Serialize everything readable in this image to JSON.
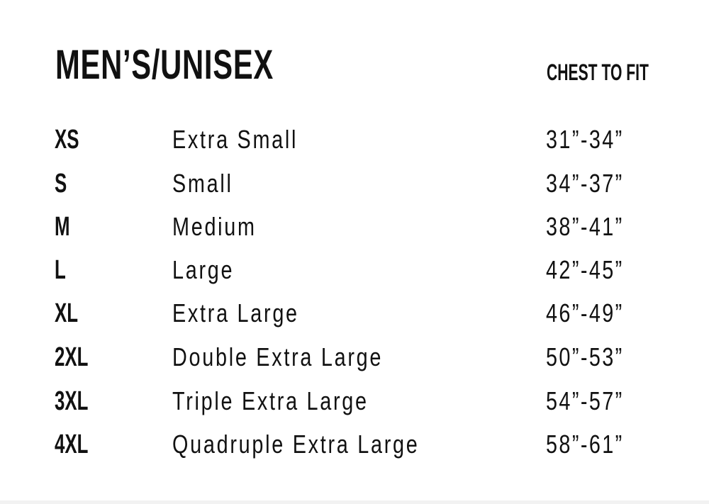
{
  "header": {
    "title": "MEN’S/UNISEX",
    "column_label": "CHEST TO FIT"
  },
  "rows": [
    {
      "code": "XS",
      "name": "Extra Small",
      "chest": "31”-34”"
    },
    {
      "code": "S",
      "name": "Small",
      "chest": "34”-37”"
    },
    {
      "code": "M",
      "name": "Medium",
      "chest": "38”-41”"
    },
    {
      "code": "L",
      "name": "Large",
      "chest": "42”-45”"
    },
    {
      "code": "XL",
      "name": "Extra Large",
      "chest": "46”-49”"
    },
    {
      "code": "2XL",
      "name": "Double Extra Large",
      "chest": "50”-53”"
    },
    {
      "code": "3XL",
      "name": "Triple Extra Large",
      "chest": "54”-57”"
    },
    {
      "code": "4XL",
      "name": "Quadruple Extra Large",
      "chest": "58”-61”"
    }
  ]
}
